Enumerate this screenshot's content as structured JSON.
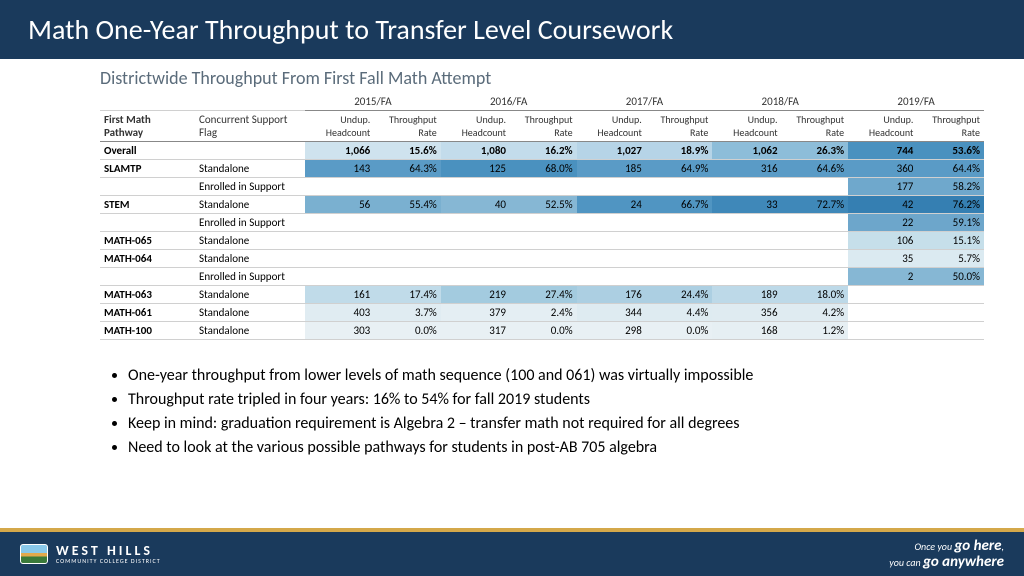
{
  "title": "Math One-Year Throughput to Transfer Level Coursework",
  "subtitle": "Districtwide Throughput From First Fall Math Attempt",
  "years": [
    "2015/FA",
    "2016/FA",
    "2017/FA",
    "2018/FA",
    "2019/FA"
  ],
  "col_labels": {
    "left1": "First Math Pathway",
    "left2": "Concurrent Support Flag",
    "hc": "Undup. Headcount",
    "rate": "Throughput Rate"
  },
  "rows": [
    {
      "pathway": "Overall",
      "support": "",
      "cells": [
        {
          "hc": "1,066",
          "rate": "15.6%",
          "c": "#cfe3ee"
        },
        {
          "hc": "1,080",
          "rate": "16.2%",
          "c": "#c3dceb"
        },
        {
          "hc": "1,027",
          "rate": "18.9%",
          "c": "#b6d4e7"
        },
        {
          "hc": "1,062",
          "rate": "26.3%",
          "c": "#8dbdd9"
        },
        {
          "hc": "744",
          "rate": "53.6%",
          "c": "#4a91bf"
        }
      ],
      "bold": true
    },
    {
      "pathway": "SLAMTP",
      "support": "Standalone",
      "cells": [
        {
          "hc": "143",
          "rate": "64.3%",
          "c": "#5a9bc6"
        },
        {
          "hc": "125",
          "rate": "68.0%",
          "c": "#4a91bf"
        },
        {
          "hc": "185",
          "rate": "64.9%",
          "c": "#5a9bc6"
        },
        {
          "hc": "316",
          "rate": "64.6%",
          "c": "#5a9bc6"
        },
        {
          "hc": "360",
          "rate": "64.4%",
          "c": "#5a9bc6"
        }
      ]
    },
    {
      "pathway": "",
      "support": "Enrolled in Support",
      "cells": [
        {
          "hc": "",
          "rate": "",
          "c": ""
        },
        {
          "hc": "",
          "rate": "",
          "c": ""
        },
        {
          "hc": "",
          "rate": "",
          "c": ""
        },
        {
          "hc": "",
          "rate": "",
          "c": ""
        },
        {
          "hc": "177",
          "rate": "58.2%",
          "c": "#6fa8cc"
        }
      ]
    },
    {
      "pathway": "STEM",
      "support": "Standalone",
      "cells": [
        {
          "hc": "56",
          "rate": "55.4%",
          "c": "#7ab0d0"
        },
        {
          "hc": "40",
          "rate": "52.5%",
          "c": "#86b7d4"
        },
        {
          "hc": "24",
          "rate": "66.7%",
          "c": "#5095c2"
        },
        {
          "hc": "33",
          "rate": "72.7%",
          "c": "#3f88b9"
        },
        {
          "hc": "42",
          "rate": "76.2%",
          "c": "#357fb2"
        }
      ]
    },
    {
      "pathway": "",
      "support": "Enrolled in Support",
      "cells": [
        {
          "hc": "",
          "rate": "",
          "c": ""
        },
        {
          "hc": "",
          "rate": "",
          "c": ""
        },
        {
          "hc": "",
          "rate": "",
          "c": ""
        },
        {
          "hc": "",
          "rate": "",
          "c": ""
        },
        {
          "hc": "22",
          "rate": "59.1%",
          "c": "#6da6cb"
        }
      ]
    },
    {
      "pathway": "MATH-065",
      "support": "Standalone",
      "cells": [
        {
          "hc": "",
          "rate": "",
          "c": ""
        },
        {
          "hc": "",
          "rate": "",
          "c": ""
        },
        {
          "hc": "",
          "rate": "",
          "c": ""
        },
        {
          "hc": "",
          "rate": "",
          "c": ""
        },
        {
          "hc": "106",
          "rate": "15.1%",
          "c": "#c6dfea"
        }
      ]
    },
    {
      "pathway": "MATH-064",
      "support": "Standalone",
      "cells": [
        {
          "hc": "",
          "rate": "",
          "c": ""
        },
        {
          "hc": "",
          "rate": "",
          "c": ""
        },
        {
          "hc": "",
          "rate": "",
          "c": ""
        },
        {
          "hc": "",
          "rate": "",
          "c": ""
        },
        {
          "hc": "35",
          "rate": "5.7%",
          "c": "#dbeaf1"
        }
      ]
    },
    {
      "pathway": "",
      "support": "Enrolled in Support",
      "cells": [
        {
          "hc": "",
          "rate": "",
          "c": ""
        },
        {
          "hc": "",
          "rate": "",
          "c": ""
        },
        {
          "hc": "",
          "rate": "",
          "c": ""
        },
        {
          "hc": "",
          "rate": "",
          "c": ""
        },
        {
          "hc": "2",
          "rate": "50.0%",
          "c": "#86b7d4"
        }
      ]
    },
    {
      "pathway": "MATH-063",
      "support": "Standalone",
      "cells": [
        {
          "hc": "161",
          "rate": "17.4%",
          "c": "#c0dbe9"
        },
        {
          "hc": "219",
          "rate": "27.4%",
          "c": "#a3cbdf"
        },
        {
          "hc": "176",
          "rate": "24.4%",
          "c": "#accfe2"
        },
        {
          "hc": "189",
          "rate": "18.0%",
          "c": "#bdd9e8"
        },
        {
          "hc": "",
          "rate": "",
          "c": ""
        }
      ]
    },
    {
      "pathway": "MATH-061",
      "support": "Standalone",
      "cells": [
        {
          "hc": "403",
          "rate": "3.7%",
          "c": "#e0ecf2"
        },
        {
          "hc": "379",
          "rate": "2.4%",
          "c": "#e4eef3"
        },
        {
          "hc": "344",
          "rate": "4.4%",
          "c": "#deebf1"
        },
        {
          "hc": "356",
          "rate": "4.2%",
          "c": "#dfebf1"
        },
        {
          "hc": "",
          "rate": "",
          "c": ""
        }
      ]
    },
    {
      "pathway": "MATH-100",
      "support": "Standalone",
      "cells": [
        {
          "hc": "303",
          "rate": "0.0%",
          "c": "#e8f0f4"
        },
        {
          "hc": "317",
          "rate": "0.0%",
          "c": "#e8f0f4"
        },
        {
          "hc": "298",
          "rate": "0.0%",
          "c": "#e8f0f4"
        },
        {
          "hc": "168",
          "rate": "1.2%",
          "c": "#e6eff3"
        },
        {
          "hc": "",
          "rate": "",
          "c": ""
        }
      ]
    }
  ],
  "bullets": [
    "One-year throughput from lower levels of math sequence (100 and 061) was virtually impossible",
    "Throughput rate tripled in four years: 16% to 54% for fall 2019 students",
    "Keep in mind: graduation requirement is Algebra 2 – transfer math not required for all degrees",
    "Need to look at the various possible pathways for students in post-AB 705 algebra"
  ],
  "footer": {
    "logo_main": "WEST HILLS",
    "logo_sub": "COMMUNITY COLLEGE DISTRICT",
    "tag_pre1": "Once you ",
    "tag_big1": "go here",
    "tag_punct": ",",
    "tag_pre2": "you can ",
    "tag_big2": "go anywhere"
  },
  "colors": {
    "header_bg": "#1a3a5c",
    "accent": "#d4a84a"
  }
}
